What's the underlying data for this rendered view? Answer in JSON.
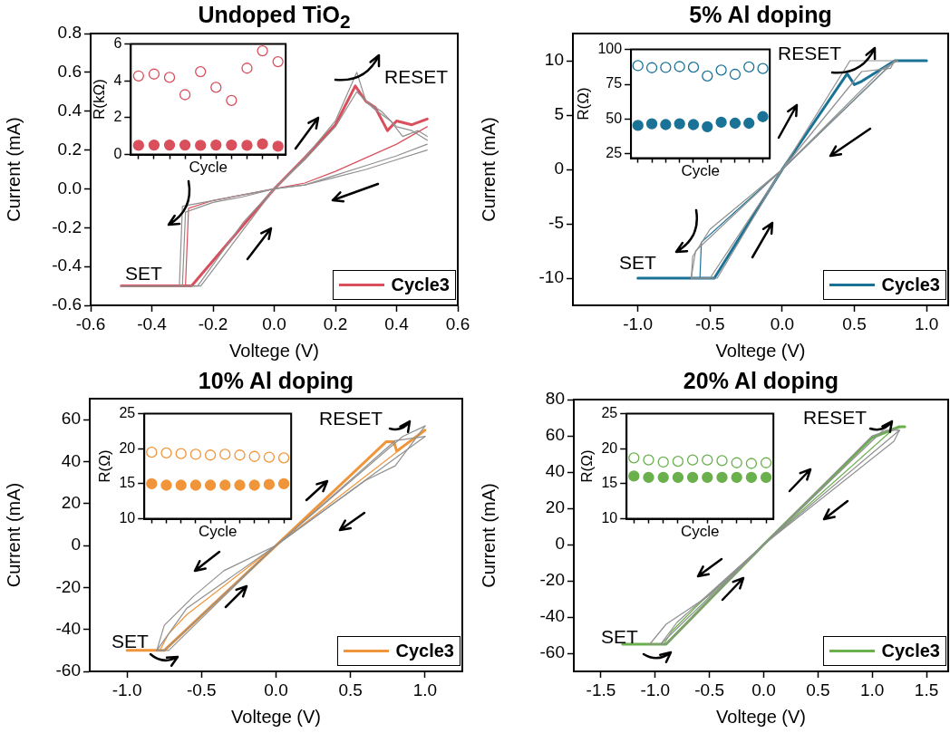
{
  "chart_data": [
    {
      "type": "line",
      "title": "Undoped TiO$_{2}$",
      "xlabel": "Voltege (V)",
      "ylabel": "Current (mA)",
      "xlim": [
        -0.6,
        0.6
      ],
      "ylim": [
        -0.6,
        0.8
      ],
      "xticks": [
        -0.6,
        -0.4,
        -0.2,
        {
          "value": 0,
          "label": "0.0"
        },
        0.2,
        0.4,
        0.6
      ],
      "yticks": [
        -0.6,
        -0.4,
        -0.2,
        {
          "value": 0,
          "label": "0.0"
        },
        0.2,
        0.4,
        0.6,
        0.8
      ],
      "marker": "none",
      "line_style": "solid",
      "legend": "bottom right",
      "annotations": [
        "SET",
        "RESET"
      ],
      "series": [
        {
          "color": "#909090",
          "x": [
            -0.5,
            -0.25,
            -0.1,
            0,
            0.1,
            0.2,
            0.27,
            0.3,
            0.35,
            0.4,
            0.45,
            0.5
          ],
          "values": [
            -0.5,
            -0.5,
            -0.17,
            0,
            0.16,
            0.35,
            0.6,
            0.45,
            0.4,
            0.32,
            0.3,
            0.25
          ]
        },
        {
          "color": "#909090",
          "x": [
            0.5,
            0.4,
            0.3,
            0.2,
            0.1,
            0,
            -0.1,
            -0.2,
            -0.3,
            -0.31,
            -0.5
          ],
          "values": [
            0.2,
            0.15,
            0.1,
            0.06,
            0.02,
            0,
            -0.03,
            -0.06,
            -0.09,
            -0.5,
            -0.5
          ]
        },
        {
          "color": "#909090",
          "x": [
            -0.5,
            -0.24,
            0,
            0.1,
            0.2,
            0.27,
            0.32,
            0.38,
            0.42,
            0.47,
            0.5
          ],
          "values": [
            -0.5,
            -0.5,
            0,
            0.15,
            0.32,
            0.5,
            0.42,
            0.35,
            0.27,
            0.3,
            0.27
          ]
        },
        {
          "color": "#909090",
          "x": [
            0.5,
            0.4,
            0.3,
            0.2,
            0.1,
            0,
            -0.1,
            -0.2,
            -0.29,
            -0.3,
            -0.5
          ],
          "values": [
            0.23,
            0.17,
            0.12,
            0.07,
            0.02,
            0,
            -0.04,
            -0.07,
            -0.12,
            -0.5,
            -0.5
          ]
        },
        {
          "name": "Cycle3",
          "color": "#d94f5c",
          "x": [
            -0.5,
            -0.27,
            0,
            0.1,
            0.2,
            0.265,
            0.3,
            0.33,
            0.37,
            0.4,
            0.45,
            0.5
          ],
          "values": [
            -0.5,
            -0.5,
            0,
            0.16,
            0.33,
            0.53,
            0.45,
            0.42,
            0.3,
            0.35,
            0.33,
            0.36
          ]
        },
        {
          "color": "#d94f5c",
          "x": [
            0.5,
            0.4,
            0.3,
            0.2,
            0.1,
            0,
            -0.1,
            -0.2,
            -0.28,
            -0.29,
            -0.5
          ],
          "values": [
            0.32,
            0.23,
            0.16,
            0.09,
            0.03,
            0,
            -0.03,
            -0.06,
            -0.1,
            -0.5,
            -0.5
          ]
        }
      ]
    },
    {
      "type": "scatter",
      "xlabel": "Cycle",
      "ylabel": "R(kΩ)",
      "categories": [
        null,
        null,
        null,
        null,
        null,
        null,
        null,
        null,
        null,
        null
      ],
      "ylim": [
        0,
        6
      ],
      "yticks": [
        0,
        2,
        4,
        6
      ],
      "marker": "circle",
      "tick_labels": "y",
      "series": [
        {
          "color": "#d94f5c",
          "values": [
            4.27,
            4.37,
            4.19,
            3.25,
            4.5,
            3.65,
            2.94,
            4.69,
            5.63,
            5.04
          ]
        },
        {
          "color": "#d94f5c",
          "values": [
            0.5,
            0.52,
            0.52,
            0.52,
            0.5,
            0.52,
            0.52,
            0.5,
            0.58,
            0.45
          ]
        }
      ]
    },
    {
      "type": "line",
      "title": "5% Al doping",
      "xlabel": "Voltege (V)",
      "ylabel": "Current (mA)",
      "xlim": [
        -1.45,
        1.15
      ],
      "ylim": [
        -12.5,
        12.5
      ],
      "xticks": [
        {
          "value": -1,
          "label": "-1.0"
        },
        -0.5,
        {
          "value": 0,
          "label": "0.0"
        },
        0.5,
        {
          "value": 1,
          "label": "1.0"
        }
      ],
      "yticks": [
        -10,
        -5,
        0,
        5,
        10
      ],
      "marker": "none",
      "line_style": "solid",
      "legend": "bottom right",
      "annotations": [
        "SET",
        "RESET"
      ],
      "series": [
        {
          "color": "#909090",
          "x": [
            -0.63,
            -0.5,
            0,
            0.47,
            0.8
          ],
          "values": [
            -10,
            -10,
            0,
            10,
            10
          ]
        },
        {
          "color": "#909090",
          "x": [
            0.8,
            0.7,
            0,
            -0.6,
            -0.63
          ],
          "values": [
            10,
            9.3,
            0,
            -7.5,
            -10
          ]
        },
        {
          "color": "#909090",
          "x": [
            -0.63,
            -0.45,
            0,
            0.55,
            0.75,
            0.78
          ],
          "values": [
            -10,
            -10,
            0,
            9,
            9.3,
            10
          ]
        },
        {
          "color": "#909090",
          "x": [
            0.78,
            0,
            -0.5,
            -0.62,
            -0.63
          ],
          "values": [
            10,
            0,
            -5.5,
            -8,
            -10
          ]
        },
        {
          "name": "Cycle3",
          "color": "#1a7396",
          "x": [
            -1,
            -0.47,
            0,
            0.45,
            0.5,
            0.55,
            0.78,
            1
          ],
          "values": [
            -10,
            -10,
            0,
            8.8,
            7.8,
            8.1,
            10,
            10
          ]
        },
        {
          "color": "#1a7396",
          "x": [
            1,
            0.78,
            0,
            -0.56,
            -0.57,
            -1
          ],
          "values": [
            10,
            10,
            0,
            -6.7,
            -10,
            -10
          ]
        }
      ]
    },
    {
      "type": "scatter",
      "xlabel": "Cycle",
      "ylabel": "R(Ω)",
      "categories": [
        null,
        null,
        null,
        null,
        null,
        null,
        null,
        null,
        null,
        null
      ],
      "ylim": [
        22,
        100
      ],
      "yticks": [
        25,
        50,
        75,
        100
      ],
      "marker": "circle",
      "tick_labels": "y",
      "series": [
        {
          "color": "#1a7396",
          "values": [
            88.4,
            86.9,
            87.1,
            87.7,
            87.3,
            81,
            85.2,
            82.2,
            87.5,
            86.3
          ]
        },
        {
          "color": "#1a7396",
          "values": [
            45.5,
            46.7,
            46.1,
            46.7,
            46.1,
            44.6,
            47.8,
            47.1,
            47.1,
            51.8
          ]
        }
      ]
    },
    {
      "type": "line",
      "title": "10% Al doping",
      "xlabel": "Voltege (V)",
      "ylabel": "Current (mA)",
      "xlim": [
        -1.25,
        1.25
      ],
      "ylim": [
        -60,
        70
      ],
      "xticks": [
        {
          "value": -1,
          "label": "-1.0"
        },
        -0.5,
        {
          "value": 0,
          "label": "0.0"
        },
        0.5,
        {
          "value": 1,
          "label": "1.0"
        }
      ],
      "yticks": [
        -60,
        -40,
        -20,
        0,
        20,
        40,
        60
      ],
      "marker": "none",
      "line_style": "solid",
      "legend": "bottom right",
      "annotations": [
        "SET",
        "RESET"
      ],
      "series": [
        {
          "color": "#909090",
          "x": [
            -0.8,
            -0.72,
            0,
            0.85,
            1
          ],
          "values": [
            -50,
            -50,
            0,
            52,
            57
          ]
        },
        {
          "color": "#909090",
          "x": [
            1,
            0.8,
            0.6,
            0,
            -0.35,
            -0.55,
            -0.75,
            -0.8
          ],
          "values": [
            57,
            38,
            31,
            0,
            -12,
            -24,
            -38,
            -50
          ]
        },
        {
          "color": "#909090",
          "x": [
            -0.8,
            -0.75,
            0,
            0.8,
            1
          ],
          "values": [
            -50,
            -50,
            0,
            50,
            52
          ]
        },
        {
          "color": "#909090",
          "x": [
            1,
            0,
            -0.6,
            -0.8
          ],
          "values": [
            52,
            0,
            -30,
            -50
          ]
        },
        {
          "name": "Cycle3",
          "color": "#f0953a",
          "x": [
            -1,
            -0.75,
            0,
            0.74,
            0.79,
            0.81,
            1
          ],
          "values": [
            -50,
            -50,
            0,
            49.5,
            49.5,
            45,
            55
          ]
        },
        {
          "color": "#f0953a",
          "x": [
            1,
            0,
            -0.6,
            -0.72,
            -0.78,
            -1
          ],
          "values": [
            55,
            0,
            -33,
            -42,
            -50,
            -50
          ]
        }
      ]
    },
    {
      "type": "scatter",
      "xlabel": "Cycle",
      "ylabel": "R(Ω)",
      "categories": [
        null,
        null,
        null,
        null,
        null,
        null,
        null,
        null,
        null,
        null
      ],
      "ylim": [
        10,
        25
      ],
      "yticks": [
        10,
        15,
        20,
        25
      ],
      "marker": "circle",
      "tick_labels": "y",
      "series": [
        {
          "color": "#f0953a",
          "values": [
            19.5,
            19.4,
            19.3,
            19.2,
            19.1,
            19.2,
            19.1,
            18.9,
            18.8,
            18.7
          ]
        },
        {
          "color": "#f0953a",
          "values": [
            15,
            14.8,
            14.8,
            14.8,
            14.8,
            14.8,
            14.8,
            14.8,
            14.9,
            15
          ]
        }
      ]
    },
    {
      "type": "line",
      "title": "20% Al doping",
      "xlabel": "Voltege (V)",
      "ylabel": "Current (mA)",
      "xlim": [
        -1.75,
        1.7
      ],
      "ylim": [
        -70,
        80
      ],
      "xticks": [
        -1.5,
        {
          "value": -1,
          "label": "-1.0"
        },
        -0.5,
        {
          "value": 0,
          "label": "0.0"
        },
        0.5,
        {
          "value": 1,
          "label": "1.0"
        },
        1.5
      ],
      "yticks": [
        -60,
        -40,
        -20,
        0,
        20,
        40,
        60,
        80
      ],
      "marker": "none",
      "line_style": "solid",
      "legend": "bottom right",
      "annotations": [
        "SET",
        "RESET"
      ],
      "series": [
        {
          "color": "#909090",
          "x": [
            -1.05,
            -0.95,
            0,
            1,
            1.2,
            1.25
          ],
          "values": [
            -55,
            -55,
            0,
            60,
            64,
            63
          ]
        },
        {
          "color": "#909090",
          "x": [
            1.25,
            1.2,
            0,
            -0.5,
            -0.9,
            -1.05
          ],
          "values": [
            63,
            57,
            0,
            -28,
            -44,
            -55
          ]
        },
        {
          "color": "#909090",
          "x": [
            -0.95,
            -0.9,
            0,
            1.1,
            1.25
          ],
          "values": [
            -55,
            -55,
            0,
            63,
            63
          ]
        },
        {
          "color": "#909090",
          "x": [
            1.25,
            0,
            -0.8,
            -0.95
          ],
          "values": [
            63,
            0,
            -43,
            -55
          ]
        },
        {
          "name": "Cycle3",
          "color": "#6ab04c",
          "x": [
            -1.3,
            -0.9,
            0,
            1,
            1.25,
            1.3
          ],
          "values": [
            -55,
            -55,
            0,
            59,
            65,
            65
          ]
        },
        {
          "color": "#6ab04c",
          "x": [
            1.3,
            1.2,
            0,
            -0.6,
            -0.85,
            -0.92,
            -1.3
          ],
          "values": [
            65,
            64,
            0,
            -33,
            -48,
            -55,
            -55
          ]
        }
      ]
    },
    {
      "type": "scatter",
      "xlabel": "Cycle",
      "ylabel": "R(Ω)",
      "categories": [
        null,
        null,
        null,
        null,
        null,
        null,
        null,
        null,
        null,
        null
      ],
      "ylim": [
        10,
        25
      ],
      "yticks": [
        10,
        15,
        20,
        25
      ],
      "marker": "circle",
      "tick_labels": "y",
      "series": [
        {
          "color": "#6ab04c",
          "values": [
            18.7,
            18.4,
            18.1,
            18.2,
            18.4,
            18.4,
            18.3,
            18,
            17.9,
            18
          ]
        },
        {
          "color": "#6ab04c",
          "values": [
            16.1,
            15.9,
            15.9,
            15.9,
            15.9,
            15.9,
            15.9,
            15.9,
            15.9,
            15.9
          ]
        }
      ]
    }
  ]
}
